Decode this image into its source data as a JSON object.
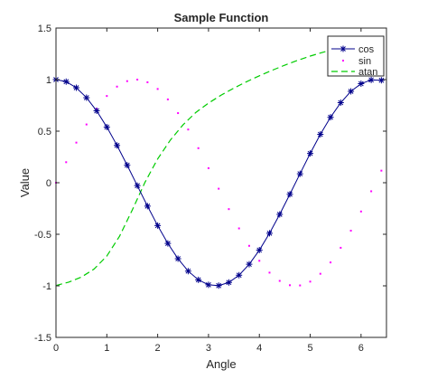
{
  "chart_data": {
    "type": "line",
    "title": "Sample Function",
    "xlabel": "Angle",
    "ylabel": "Value",
    "xlim": [
      0,
      6.5
    ],
    "ylim": [
      -1.5,
      1.5
    ],
    "xticks": [
      0,
      1,
      2,
      3,
      4,
      5,
      6
    ],
    "yticks": [
      -1.5,
      -1,
      -0.5,
      0,
      0.5,
      1,
      1.5
    ],
    "xtick_labels": [
      "0",
      "1",
      "2",
      "3",
      "4",
      "5",
      "6"
    ],
    "ytick_labels": [
      "-1.5",
      "-1",
      "-0.5",
      "0",
      "0.5",
      "1",
      "1.5"
    ],
    "grid": false,
    "legend_position": "top-right",
    "series": [
      {
        "name": "cos",
        "style": "solid line with asterisk markers",
        "color": "#00008b",
        "x": [
          0,
          0.2,
          0.4,
          0.6,
          0.8,
          1.0,
          1.2,
          1.4,
          1.6,
          1.8,
          2.0,
          2.2,
          2.4,
          2.6,
          2.8,
          3.0,
          3.2,
          3.4,
          3.6,
          3.8,
          4.0,
          4.2,
          4.4,
          4.6,
          4.8,
          5.0,
          5.2,
          5.4,
          5.6,
          5.8,
          6.0,
          6.2,
          6.4
        ],
        "y": [
          1.0,
          0.98,
          0.921,
          0.825,
          0.697,
          0.54,
          0.362,
          0.17,
          -0.029,
          -0.227,
          -0.416,
          -0.589,
          -0.737,
          -0.857,
          -0.942,
          -0.99,
          -0.998,
          -0.967,
          -0.897,
          -0.791,
          -0.654,
          -0.49,
          -0.307,
          -0.112,
          0.087,
          0.284,
          0.469,
          0.635,
          0.776,
          0.886,
          0.96,
          0.997,
          0.993
        ]
      },
      {
        "name": "sin",
        "style": "dotted markers",
        "color": "#ff00ff",
        "x": [
          0,
          0.2,
          0.4,
          0.6,
          0.8,
          1.0,
          1.2,
          1.4,
          1.6,
          1.8,
          2.0,
          2.2,
          2.4,
          2.6,
          2.8,
          3.0,
          3.2,
          3.4,
          3.6,
          3.8,
          4.0,
          4.2,
          4.4,
          4.6,
          4.8,
          5.0,
          5.2,
          5.4,
          5.6,
          5.8,
          6.0,
          6.2,
          6.4
        ],
        "y": [
          0.0,
          0.199,
          0.389,
          0.565,
          0.717,
          0.841,
          0.932,
          0.985,
          1.0,
          0.974,
          0.909,
          0.808,
          0.675,
          0.516,
          0.335,
          0.141,
          -0.058,
          -0.256,
          -0.443,
          -0.612,
          -0.757,
          -0.872,
          -0.952,
          -0.994,
          -0.996,
          -0.959,
          -0.883,
          -0.773,
          -0.631,
          -0.465,
          -0.279,
          -0.083,
          0.117
        ]
      },
      {
        "name": "atan",
        "style": "dashed line",
        "color": "#00cc00",
        "x": [
          0,
          0.25,
          0.5,
          0.75,
          1.0,
          1.25,
          1.5,
          1.75,
          2.0,
          2.25,
          2.5,
          2.75,
          3.0,
          3.25,
          3.5,
          3.75,
          4.0,
          4.25,
          4.5,
          4.75,
          5.0,
          5.25,
          5.5,
          5.75,
          6.0,
          6.25,
          6.5
        ],
        "y": [
          -0.997,
          -0.964,
          -0.915,
          -0.837,
          -0.711,
          -0.519,
          -0.265,
          0.004,
          0.231,
          0.414,
          0.562,
          0.681,
          0.772,
          0.85,
          0.918,
          0.98,
          1.037,
          1.09,
          1.14,
          1.186,
          1.228,
          1.265,
          1.299,
          1.328,
          1.354,
          1.377,
          1.397
        ]
      }
    ]
  }
}
